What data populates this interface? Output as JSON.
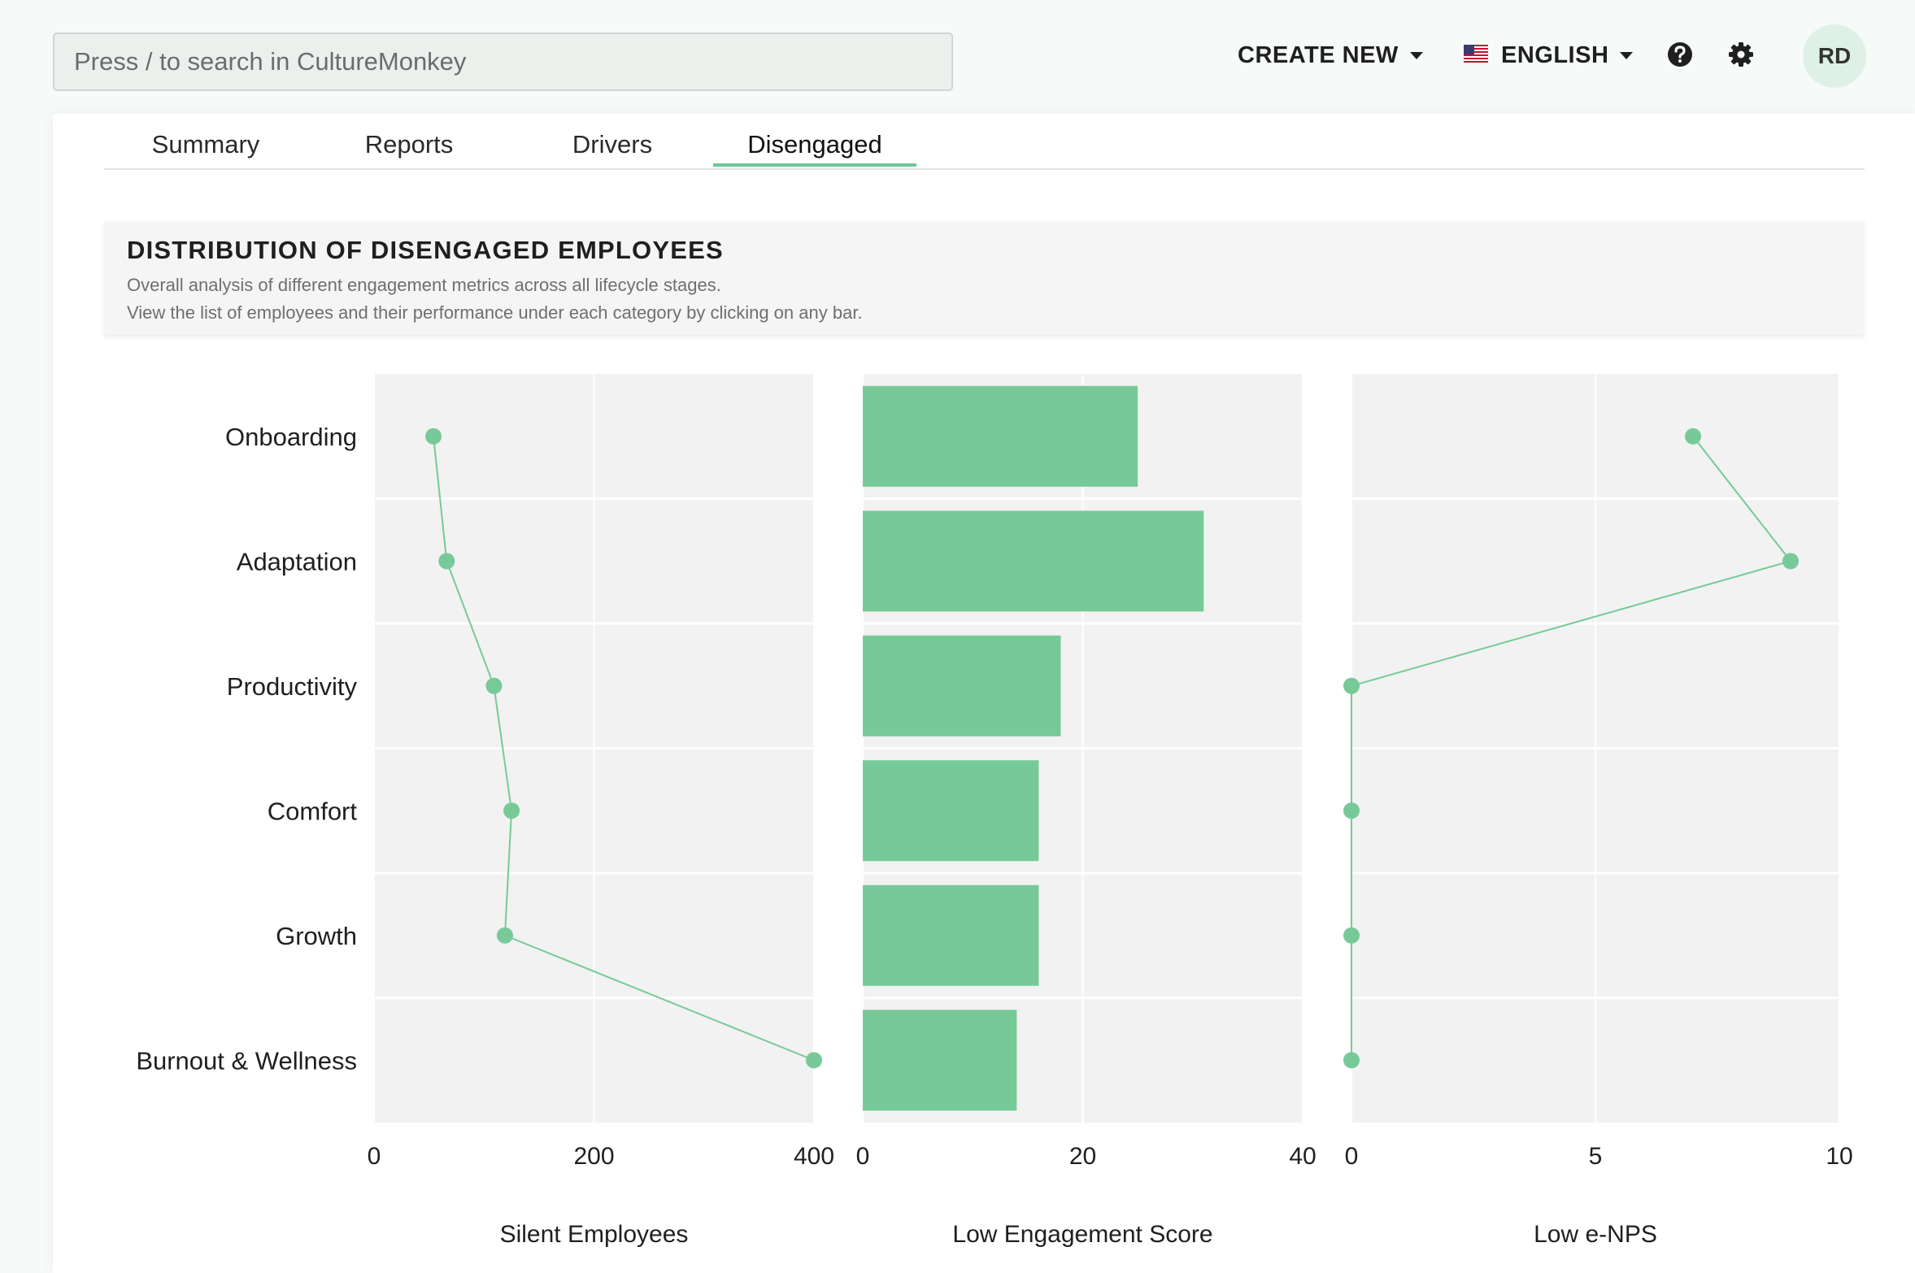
{
  "search": {
    "placeholder": "Press / to search in CultureMonkey"
  },
  "header": {
    "create_new_label": "CREATE NEW",
    "language_label": "ENGLISH",
    "help_icon": "question-circle-icon",
    "settings_icon": "gear-icon",
    "avatar_initials": "RD"
  },
  "tabs": [
    {
      "label": "Summary",
      "active": false
    },
    {
      "label": "Reports",
      "active": false
    },
    {
      "label": "Drivers",
      "active": false
    },
    {
      "label": "Disengaged",
      "active": true
    }
  ],
  "card": {
    "title": "DISTRIBUTION OF DISENGAGED EMPLOYEES",
    "subtitle_1": "Overall analysis of different engagement metrics across all lifecycle stages.",
    "subtitle_2": "View the list of employees and their performance under each category by clicking on any bar."
  },
  "colors": {
    "accent": "#77ca98",
    "tab_underline": "#6dc79a",
    "plot_background": "#f2f2f2",
    "gridline": "#ffffff"
  },
  "chart_data": {
    "type": "faceted",
    "categories": [
      "Onboarding",
      "Adaptation",
      "Productivity",
      "Comfort",
      "Growth",
      "Burnout & Wellness"
    ],
    "panels": [
      {
        "type": "line",
        "xlabel": "Silent Employees",
        "xlim": [
          0,
          400
        ],
        "ticks": [
          0,
          200,
          400
        ],
        "values": [
          54,
          66,
          109,
          125,
          119,
          400
        ]
      },
      {
        "type": "bar",
        "xlabel": "Low Engagement Score",
        "xlim": [
          0,
          40
        ],
        "ticks": [
          0,
          20,
          40
        ],
        "values": [
          25,
          31,
          18,
          16,
          16,
          14
        ]
      },
      {
        "type": "line",
        "xlabel": "Low e-NPS",
        "xlim": [
          0,
          10
        ],
        "ticks": [
          0,
          5,
          10
        ],
        "values": [
          7,
          9,
          0,
          0,
          0,
          0
        ]
      }
    ]
  }
}
